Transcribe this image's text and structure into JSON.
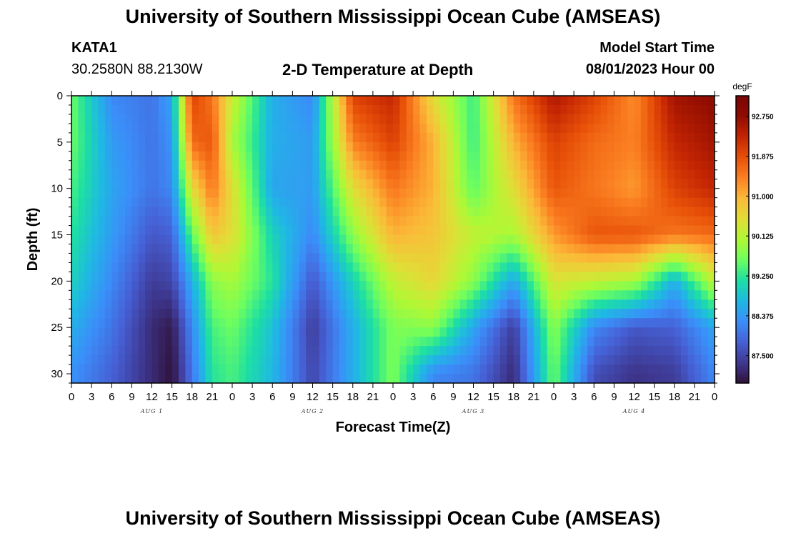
{
  "header": {
    "title": "University of Southern Mississippi Ocean Cube (AMSEAS)",
    "station_id": "KATA1",
    "station_coords": "30.2580N  88.2130W",
    "plot_title": "2-D Temperature at Depth",
    "model_start_label": "Model Start Time",
    "model_start_value": "08/01/2023 Hour 00"
  },
  "footer": {
    "title": "University of Southern Mississippi Ocean Cube (AMSEAS)"
  },
  "chart_data": {
    "type": "heatmap",
    "title": "2-D Temperature at Depth",
    "xlabel": "Forecast Time(Z)",
    "ylabel": "Depth (ft)",
    "x_tick_labels": [
      "0",
      "3",
      "6",
      "9",
      "12",
      "15",
      "18",
      "21",
      "0",
      "3",
      "6",
      "9",
      "12",
      "15",
      "18",
      "21",
      "0",
      "3",
      "6",
      "9",
      "12",
      "15",
      "18",
      "21",
      "0",
      "3",
      "6",
      "9",
      "12",
      "15",
      "18",
      "21",
      "0"
    ],
    "day_labels": [
      "AUG 1",
      "AUG 2",
      "AUG 3",
      "AUG 4"
    ],
    "y_ticks": [
      0,
      5,
      10,
      15,
      20,
      25,
      30
    ],
    "ylim": [
      0,
      31
    ],
    "xlim_hours": [
      0,
      96
    ],
    "colorbar": {
      "unit": "degF",
      "ticks": [
        "87.500",
        "88.375",
        "89.250",
        "90.125",
        "91.000",
        "91.875",
        "92.750"
      ],
      "range": [
        86.9,
        93.2
      ],
      "colormap": [
        "#30123b",
        "#3e3891",
        "#4661d6",
        "#3b8ef9",
        "#1fb8e4",
        "#1ddfa3",
        "#6dfe5f",
        "#b0f835",
        "#e1dd37",
        "#fbb938",
        "#fb8022",
        "#e75008",
        "#c42503",
        "#900c00",
        "#7a0403"
      ]
    },
    "depth_layers_ft": [
      0,
      5,
      10,
      15,
      20,
      25,
      30
    ],
    "time_hours": [
      0,
      6,
      12,
      15,
      18,
      21,
      24,
      30,
      36,
      42,
      48,
      54,
      60,
      66,
      72,
      78,
      84,
      90,
      96
    ],
    "temperature_degF": [
      [
        89.6,
        88.2,
        88.0,
        88.5,
        92.0,
        91.5,
        90.3,
        88.6,
        88.2,
        92.0,
        92.3,
        90.5,
        89.3,
        91.5,
        92.5,
        92.0,
        91.3,
        92.6,
        92.8
      ],
      [
        89.6,
        88.4,
        88.0,
        88.3,
        91.6,
        91.8,
        90.0,
        88.6,
        88.4,
        91.4,
        92.0,
        91.0,
        89.3,
        91.0,
        92.0,
        91.6,
        91.4,
        92.3,
        92.6
      ],
      [
        89.4,
        88.5,
        88.0,
        88.2,
        90.5,
        91.5,
        90.5,
        88.5,
        88.4,
        90.5,
        91.5,
        91.0,
        89.5,
        90.5,
        91.8,
        91.5,
        91.2,
        92.0,
        92.3
      ],
      [
        89.2,
        88.4,
        87.7,
        87.8,
        89.5,
        90.8,
        90.5,
        89.0,
        88.2,
        89.8,
        91.0,
        90.8,
        90.2,
        90.0,
        91.2,
        91.8,
        91.8,
        91.5,
        91.6
      ],
      [
        89.0,
        88.2,
        87.4,
        87.5,
        88.6,
        89.8,
        90.0,
        89.2,
        87.7,
        89.0,
        90.2,
        90.6,
        89.8,
        88.5,
        90.4,
        90.2,
        90.0,
        88.6,
        90.2
      ],
      [
        88.6,
        88.0,
        87.2,
        87.0,
        88.2,
        89.4,
        89.6,
        88.8,
        87.4,
        88.6,
        89.7,
        89.8,
        88.5,
        87.4,
        89.8,
        88.2,
        87.7,
        87.8,
        88.5
      ],
      [
        88.3,
        87.8,
        87.2,
        86.9,
        88.0,
        89.2,
        89.4,
        88.7,
        87.5,
        88.6,
        89.7,
        88.2,
        88.0,
        87.2,
        89.6,
        87.6,
        87.3,
        87.4,
        88.2
      ]
    ]
  }
}
